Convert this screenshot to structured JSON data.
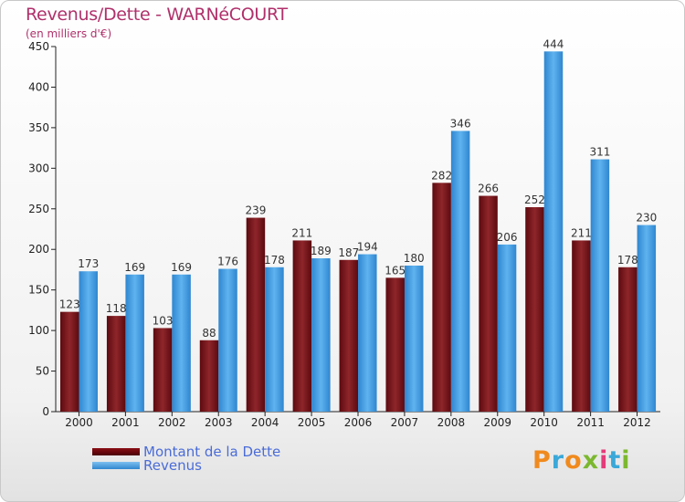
{
  "title": "Revenus/Dette - WARNéCOURT",
  "subtitle": "(en milliers d'€)",
  "logo": {
    "letters": [
      "P",
      "r",
      "o",
      "x",
      "i",
      "t",
      "i"
    ],
    "colors": [
      "#f08a1d",
      "#3aa8d8",
      "#f08a1d",
      "#7cb82f",
      "#e43b7a",
      "#3aa8d8",
      "#7cb82f"
    ]
  },
  "chart_data": {
    "type": "bar",
    "categories": [
      "2000",
      "2001",
      "2002",
      "2003",
      "2004",
      "2005",
      "2006",
      "2007",
      "2008",
      "2009",
      "2010",
      "2011",
      "2012"
    ],
    "series": [
      {
        "name": "Montant de la Dette",
        "color": "#7a1a1e",
        "values": [
          123,
          118,
          103,
          88,
          239,
          211,
          187,
          165,
          282,
          266,
          252,
          211,
          178
        ]
      },
      {
        "name": "Revenus",
        "color": "#4aa3e6",
        "values": [
          173,
          169,
          169,
          176,
          178,
          189,
          194,
          180,
          346,
          206,
          444,
          311,
          230
        ]
      }
    ],
    "ylim": [
      0,
      450
    ],
    "yticks": [
      0,
      50,
      100,
      150,
      200,
      250,
      300,
      350,
      400,
      450
    ],
    "legend": "bottom-left",
    "grid": false
  }
}
